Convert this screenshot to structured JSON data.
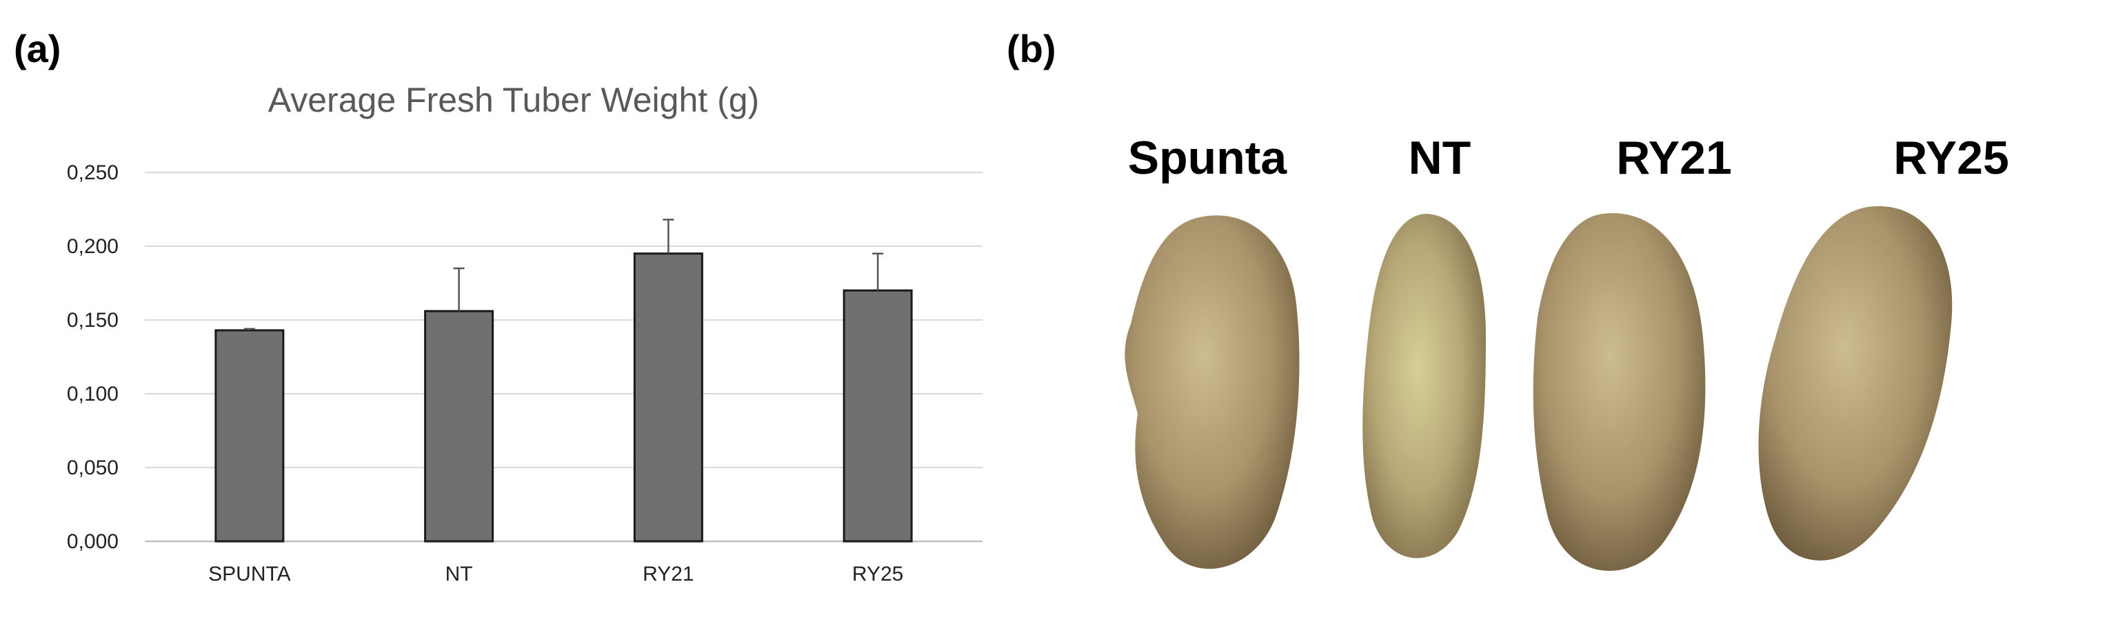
{
  "panel_a_label": "(a)",
  "panel_b_label": "(b)",
  "chart_data": {
    "type": "bar",
    "title": "Average Fresh Tuber Weight (g)",
    "xlabel": "",
    "ylabel": "",
    "categories": [
      "SPUNTA",
      "NT",
      "RY21",
      "RY25"
    ],
    "values": [
      0.143,
      0.156,
      0.195,
      0.17
    ],
    "error": [
      0.001,
      0.029,
      0.023,
      0.025
    ],
    "ylim": [
      0,
      0.25
    ],
    "yticks": [
      0.0,
      0.05,
      0.1,
      0.15,
      0.2,
      0.25
    ],
    "ytick_labels": [
      "0,000",
      "0,050",
      "0,100",
      "0,150",
      "0,200",
      "0,250"
    ],
    "grid": true,
    "bar_color": "#707070"
  },
  "photo": {
    "labels": [
      "Spunta",
      "NT",
      "RY21",
      "RY25"
    ]
  }
}
